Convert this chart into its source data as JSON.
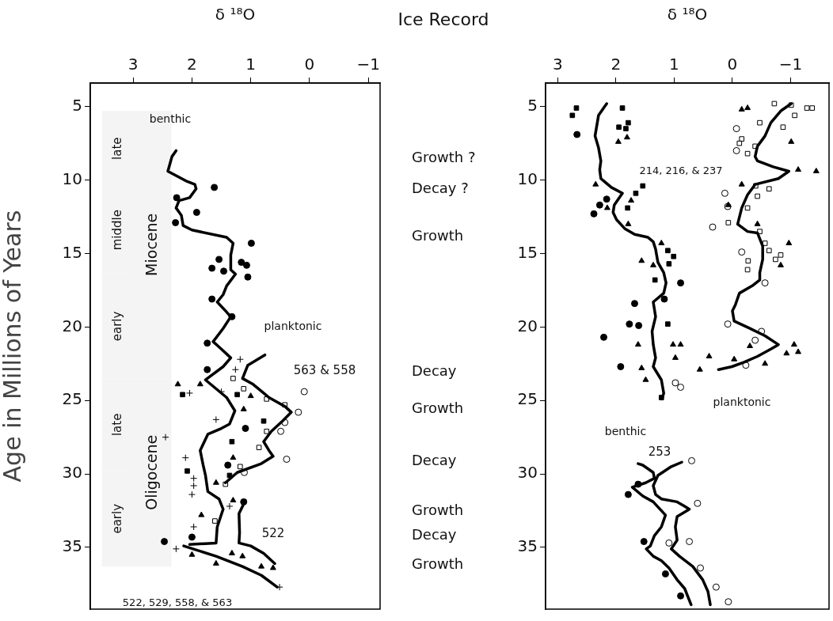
{
  "chart_data": [
    {
      "type": "scatter",
      "xlabel": "δ ¹⁸O",
      "ylabel": "Age in Millions of Years",
      "xlim": [
        3.73,
        -1.2
      ],
      "ylim": [
        39.2,
        3.4
      ],
      "xticks": [
        3,
        2,
        1,
        0,
        {
          "value": -1,
          "label": "−1"
        }
      ],
      "yticks": [
        5,
        10,
        15,
        20,
        25,
        30,
        35
      ],
      "grid": false,
      "legend": false,
      "series": [
        {
          "type": "line",
          "color": "#000000",
          "marker": "none",
          "x": [
            2.27,
            2.34,
            2.41,
            2.08,
            1.95,
            1.93,
            2.04,
            2.22,
            2.27,
            2.18,
            2.15,
            2.0,
            1.41,
            1.3,
            1.34,
            1.34,
            1.26,
            1.41,
            1.47,
            1.57,
            1.43,
            1.34,
            1.47,
            1.64,
            1.5,
            1.34,
            1.47,
            1.77,
            1.41,
            1.27,
            1.36,
            1.5,
            1.73,
            1.86,
            1.81,
            1.77,
            1.73,
            1.54,
            1.47,
            1.57,
            1.59,
            2.04
          ],
          "values": [
            8.0,
            8.4,
            9.4,
            10.1,
            10.3,
            10.6,
            11.2,
            11.4,
            11.9,
            12.4,
            13.1,
            13.4,
            13.9,
            14.3,
            15.1,
            16.1,
            16.4,
            17.2,
            17.8,
            18.3,
            18.9,
            19.3,
            20.1,
            21.0,
            21.5,
            22.1,
            22.7,
            23.6,
            24.8,
            25.7,
            26.6,
            26.9,
            27.3,
            28.4,
            29.4,
            30.1,
            31.2,
            31.7,
            32.4,
            33.6,
            34.7,
            34.8
          ]
        },
        {
          "type": "line",
          "color": "#000000",
          "marker": "none",
          "x": [
            2.14,
            1.59,
            1.14,
            0.82,
            0.55
          ],
          "values": [
            34.9,
            35.6,
            36.3,
            36.9,
            37.7
          ]
        },
        {
          "type": "line",
          "color": "#000000",
          "marker": "none",
          "x": [
            0.76,
            1.05,
            1.14,
            0.96,
            0.78,
            0.69,
            0.42,
            0.31,
            0.46,
            0.65,
            0.78,
            0.69,
            0.62,
            0.82,
            1.23,
            1.43
          ],
          "values": [
            21.9,
            22.6,
            23.5,
            23.9,
            24.5,
            24.8,
            25.4,
            25.8,
            26.4,
            27.1,
            27.8,
            28.4,
            28.8,
            29.3,
            29.9,
            30.6
          ]
        },
        {
          "type": "line",
          "color": "#000000",
          "marker": "none",
          "x": [
            1.09,
            1.2,
            1.19,
            1.2,
            1.0,
            0.78,
            0.59
          ],
          "values": [
            31.8,
            32.7,
            34.0,
            34.7,
            34.9,
            35.4,
            36.1
          ]
        },
        {
          "type": "scatter",
          "color": "#000000",
          "marker": "circle",
          "x": [
            1.62,
            1.92,
            2.26,
            2.28,
            0.99,
            1.54,
            1.66,
            1.46,
            1.16,
            1.07,
            1.05,
            1.66,
            1.32,
            1.74,
            1.74,
            1.09,
            1.39,
            2.47,
            1.12,
            2.0
          ],
          "values": [
            10.5,
            12.2,
            11.2,
            12.9,
            14.3,
            15.4,
            16.0,
            16.2,
            15.6,
            15.8,
            16.6,
            18.1,
            19.3,
            21.1,
            22.9,
            26.9,
            29.4,
            34.6,
            31.9,
            34.3
          ]
        },
        {
          "type": "scatter",
          "color": "#000000",
          "marker": "cross",
          "x": [
            2.45,
            2.11,
            1.97,
            1.97,
            2.0,
            1.97,
            1.59,
            1.5,
            1.18,
            1.26,
            2.04,
            1.36,
            0.51,
            2.27
          ],
          "values": [
            27.5,
            28.9,
            30.3,
            30.8,
            31.4,
            33.6,
            26.3,
            24.4,
            22.2,
            22.9,
            24.5,
            32.2,
            37.7,
            35.1
          ]
        },
        {
          "type": "scatter",
          "color": "#000000",
          "marker": "triangle",
          "x": [
            2.24,
            1.86,
            1.0,
            1.12,
            1.3,
            1.59,
            1.84,
            2.0,
            1.59,
            1.14,
            1.3,
            1.32,
            0.82,
            0.62
          ],
          "values": [
            23.9,
            23.9,
            24.7,
            25.6,
            28.9,
            30.6,
            32.8,
            35.5,
            36.1,
            35.6,
            31.8,
            35.4,
            36.3,
            36.4
          ]
        },
        {
          "type": "scatter",
          "color": "#000000",
          "marker": "square",
          "x": [
            2.16,
            1.23,
            2.08,
            1.32,
            1.36,
            0.78
          ],
          "values": [
            24.6,
            24.6,
            29.8,
            27.8,
            30.1,
            26.4
          ]
        },
        {
          "type": "scatter",
          "color": "#ffffff",
          "marker": "square",
          "x": [
            1.3,
            1.12,
            0.73,
            0.42,
            0.73,
            0.86,
            1.18,
            1.43,
            1.61
          ],
          "values": [
            23.5,
            24.2,
            24.9,
            25.3,
            27.1,
            28.2,
            29.5,
            30.7,
            33.2
          ]
        },
        {
          "type": "scatter",
          "color": "#ffffff",
          "marker": "circle",
          "x": [
            0.09,
            0.19,
            0.49,
            0.39,
            1.11,
            0.42
          ],
          "values": [
            24.4,
            25.8,
            27.1,
            29.0,
            29.9,
            26.5
          ]
        }
      ],
      "bands": [
        {
          "axis": "y",
          "from": 5.3,
          "to": 10.4,
          "label": "late",
          "color": "#f4f4f4"
        },
        {
          "axis": "y",
          "from": 10.4,
          "to": 16.4,
          "label": "middle",
          "color": "#f4f4f4"
        },
        {
          "axis": "y",
          "from": 16.4,
          "to": 23.5,
          "label": "early",
          "color": "#f4f4f4"
        },
        {
          "axis": "y",
          "from": 5.3,
          "to": 23.5,
          "label": "Miocene",
          "color": "#f4f4f4"
        },
        {
          "axis": "y",
          "from": 23.5,
          "to": 29.8,
          "label": "late",
          "color": "#f4f4f4"
        },
        {
          "axis": "y",
          "from": 29.8,
          "to": 36.3,
          "label": "early",
          "color": "#f4f4f4"
        },
        {
          "axis": "y",
          "from": 23.5,
          "to": 36.3,
          "label": "Oligocene",
          "color": "#f4f4f4"
        }
      ],
      "annotations": [
        "Ice Record",
        "benthic",
        "planktonic",
        "563 & 558",
        "522",
        "522, 529, 558, & 563",
        "Growth ?",
        "Decay ?",
        "Growth",
        "Decay",
        "Growth",
        "Decay",
        "Growth",
        "Decay",
        "Growth"
      ]
    },
    {
      "type": "scatter",
      "xlabel": "δ ¹⁸O",
      "xlim": [
        3.21,
        -1.66
      ],
      "ylim": [
        39.2,
        3.4
      ],
      "xticks": [
        3,
        2,
        1,
        0,
        {
          "value": -1,
          "label": "−1"
        }
      ],
      "yticks": [
        5,
        10,
        15,
        20,
        25,
        30,
        35
      ],
      "grid": false,
      "legend": false,
      "series": [
        {
          "type": "line",
          "color": "#000000",
          "marker": "none",
          "x": [
            2.16,
            2.3,
            2.36,
            2.3,
            2.26,
            2.28,
            2.26,
            2.08,
            1.89,
            2.03,
            2.05,
            1.99,
            1.85,
            1.68,
            1.45,
            1.36,
            1.32,
            1.28,
            1.18,
            1.14,
            1.18,
            1.36,
            1.32,
            1.38,
            1.36,
            1.32,
            1.36,
            1.22,
            1.18,
            1.21
          ],
          "values": [
            4.8,
            5.6,
            7.0,
            7.8,
            8.7,
            9.3,
            9.9,
            10.5,
            10.9,
            11.7,
            12.2,
            12.7,
            13.3,
            13.7,
            13.9,
            14.2,
            14.7,
            15.6,
            16.3,
            17.0,
            17.7,
            18.3,
            19.3,
            20.3,
            21.2,
            22.1,
            22.7,
            23.6,
            24.5,
            24.9
          ]
        },
        {
          "type": "line",
          "color": "#000000",
          "marker": "none",
          "x": [
            -1.01,
            -0.83,
            -0.66,
            -0.56,
            -0.43,
            -0.39,
            -0.43,
            -0.7,
            -0.97,
            -0.79,
            -0.39,
            -0.26,
            -0.16,
            -0.09,
            -0.26,
            -0.43,
            -0.52,
            -0.52,
            -0.47,
            -0.47,
            -0.34,
            -0.12,
            -0.05,
            0.0,
            -0.03,
            -0.3,
            -0.56,
            -0.79,
            -0.66,
            -0.43,
            -0.2,
            0.01,
            0.24
          ],
          "values": [
            4.8,
            5.3,
            6.1,
            7.0,
            7.7,
            8.4,
            8.7,
            9.1,
            9.4,
            9.9,
            10.3,
            11.0,
            11.9,
            13.0,
            13.5,
            13.6,
            14.5,
            15.4,
            16.3,
            16.8,
            17.2,
            17.7,
            18.5,
            18.9,
            19.6,
            20.1,
            20.6,
            21.2,
            21.5,
            22.0,
            22.4,
            22.7,
            22.9
          ]
        },
        {
          "type": "line",
          "color": "#000000",
          "marker": "none",
          "x": [
            1.62,
            1.54,
            1.36,
            1.34,
            1.49,
            1.72,
            1.54,
            1.36,
            1.15,
            1.22,
            1.34,
            1.41,
            1.48,
            1.36,
            1.22,
            1.09,
            0.95,
            0.82,
            0.71
          ],
          "values": [
            29.3,
            29.4,
            29.9,
            30.3,
            30.6,
            30.9,
            31.5,
            31.9,
            32.8,
            33.6,
            34.2,
            34.9,
            35.1,
            35.6,
            35.9,
            36.4,
            37.2,
            37.8,
            38.9
          ]
        },
        {
          "type": "line",
          "color": "#000000",
          "marker": "none",
          "x": [
            0.87,
            1.05,
            1.28,
            1.36,
            1.32,
            1.22,
            0.95,
            0.82,
            0.74,
            0.95,
            0.98,
            0.95,
            1.05,
            0.91,
            0.68,
            0.51,
            0.42,
            0.38
          ],
          "values": [
            29.2,
            29.5,
            30.1,
            30.8,
            31.4,
            31.7,
            31.9,
            32.2,
            32.4,
            32.9,
            33.6,
            34.5,
            35.1,
            35.6,
            36.3,
            37.2,
            38.0,
            38.9
          ]
        },
        {
          "type": "scatter",
          "color": "#000000",
          "marker": "circle",
          "x": [
            2.21,
            1.92,
            1.77,
            1.61,
            1.68,
            1.17,
            0.89,
            2.38,
            2.28,
            2.16,
            2.67,
            1.52,
            1.79,
            1.62,
            1.15,
            0.89
          ],
          "values": [
            20.7,
            22.7,
            19.8,
            19.9,
            18.4,
            18.1,
            17.0,
            12.3,
            11.7,
            11.3,
            6.9,
            34.6,
            31.4,
            30.7,
            36.8,
            38.3
          ]
        },
        {
          "type": "scatter",
          "color": "#000000",
          "marker": "square",
          "x": [
            2.75,
            2.68,
            1.89,
            1.79,
            1.83,
            1.95,
            1.54,
            1.66,
            1.8,
            1.11,
            1.01,
            1.33,
            1.09,
            1.11,
            1.22
          ],
          "values": [
            5.6,
            5.1,
            5.1,
            6.1,
            6.5,
            6.4,
            10.4,
            10.9,
            11.9,
            14.8,
            15.2,
            16.8,
            15.7,
            19.8,
            24.8
          ]
        },
        {
          "type": "scatter",
          "color": "#000000",
          "marker": "triangle",
          "x": [
            1.81,
            1.96,
            1.74,
            2.15,
            1.79,
            1.22,
            1.56,
            1.36,
            1.62,
            1.02,
            0.89,
            0.98,
            1.56,
            1.49,
            0.4,
            2.35,
            -0.26,
            -0.16,
            -1.01,
            -1.13,
            -1.44,
            -0.43,
            0.07,
            -0.97,
            -0.83,
            -0.16,
            0.56,
            -0.3,
            -1.06,
            -1.13,
            -0.93,
            -0.56,
            -0.03
          ],
          "values": [
            7.1,
            7.4,
            11.4,
            11.9,
            13.0,
            14.3,
            15.5,
            15.8,
            21.2,
            21.2,
            21.2,
            22.1,
            22.8,
            23.6,
            22.0,
            10.3,
            5.1,
            5.2,
            7.4,
            9.3,
            9.4,
            13.0,
            11.7,
            14.3,
            15.8,
            10.3,
            22.9,
            21.3,
            21.2,
            21.7,
            21.8,
            22.5,
            22.2
          ]
        },
        {
          "type": "scatter",
          "color": "#ffffff",
          "marker": "square",
          "x": [
            -0.72,
            -1.01,
            -1.28,
            -1.37,
            -1.07,
            -0.47,
            -0.87,
            -0.16,
            -0.12,
            -0.39,
            -0.26,
            -0.4,
            -0.63,
            -0.43,
            -0.26,
            0.07,
            -0.47,
            -0.56,
            -0.63,
            -0.83,
            -0.27,
            -0.26,
            -0.74
          ],
          "values": [
            4.8,
            4.9,
            5.1,
            5.1,
            5.6,
            6.1,
            6.4,
            7.2,
            7.5,
            7.7,
            8.2,
            10.4,
            10.6,
            11.1,
            11.9,
            12.9,
            13.5,
            14.3,
            14.8,
            15.1,
            15.5,
            16.1,
            15.4
          ]
        },
        {
          "type": "scatter",
          "color": "#ffffff",
          "marker": "circle",
          "x": [
            0.13,
            0.08,
            0.34,
            -0.16,
            -0.56,
            0.08,
            -0.5,
            -0.39,
            -0.23,
            0.98,
            0.89,
            0.7,
            0.6,
            0.74,
            1.09,
            0.28,
            0.07,
            0.55,
            -0.07,
            -0.07
          ],
          "values": [
            10.9,
            11.8,
            13.2,
            14.9,
            17.0,
            19.8,
            20.3,
            20.9,
            22.6,
            23.8,
            24.1,
            29.1,
            32.0,
            34.6,
            34.7,
            37.7,
            38.7,
            36.4,
            6.5,
            8.0
          ]
        }
      ],
      "annotations": [
        "214, 216, & 237",
        "planktonic",
        "benthic",
        "253"
      ]
    }
  ]
}
